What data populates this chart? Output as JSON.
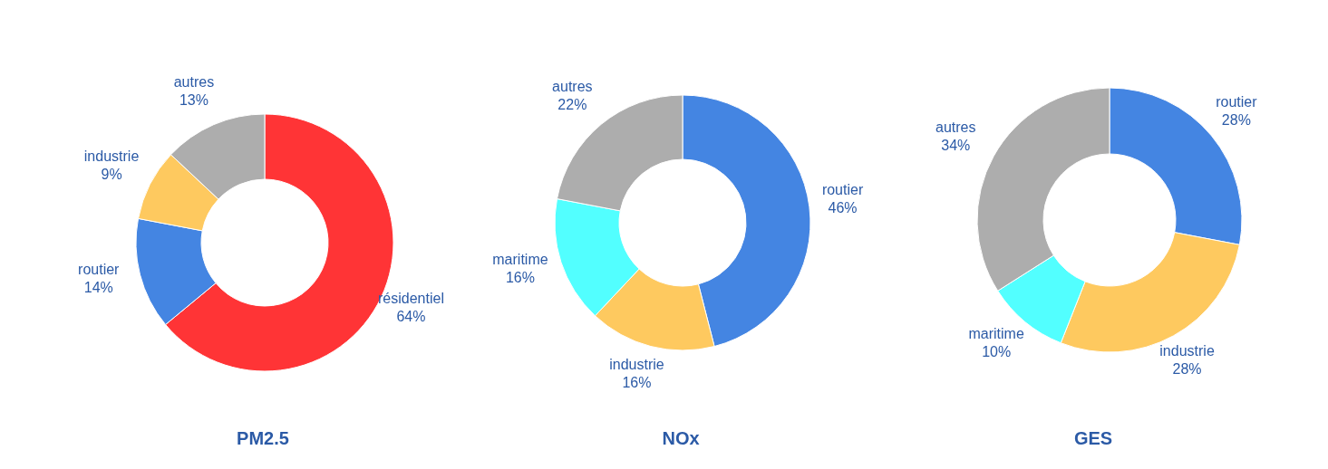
{
  "chart_data": [
    {
      "type": "donut",
      "title": "PM2.5",
      "categories": [
        "résidentiel",
        "routier",
        "industrie",
        "autres"
      ],
      "values": [
        64,
        14,
        9,
        13
      ],
      "colors": [
        "#ff3436",
        "#4485e2",
        "#fec95f",
        "#adadad"
      ],
      "value_labels": [
        "64%",
        "14%",
        "9%",
        "13%"
      ]
    },
    {
      "type": "donut",
      "title": "NOx",
      "categories": [
        "routier",
        "industrie",
        "maritime",
        "autres"
      ],
      "values": [
        46,
        16,
        16,
        22
      ],
      "colors": [
        "#4485e2",
        "#fec95f",
        "#52ffff",
        "#adadad"
      ],
      "value_labels": [
        "46%",
        "16%",
        "16%",
        "22%"
      ]
    },
    {
      "type": "donut",
      "title": "GES",
      "categories": [
        "routier",
        "industrie",
        "maritime",
        "autres"
      ],
      "values": [
        28,
        28,
        10,
        34
      ],
      "colors": [
        "#4485e2",
        "#fec95f",
        "#52ffff",
        "#adadad"
      ],
      "value_labels": [
        "28%",
        "28%",
        "10%",
        "34%"
      ]
    }
  ]
}
